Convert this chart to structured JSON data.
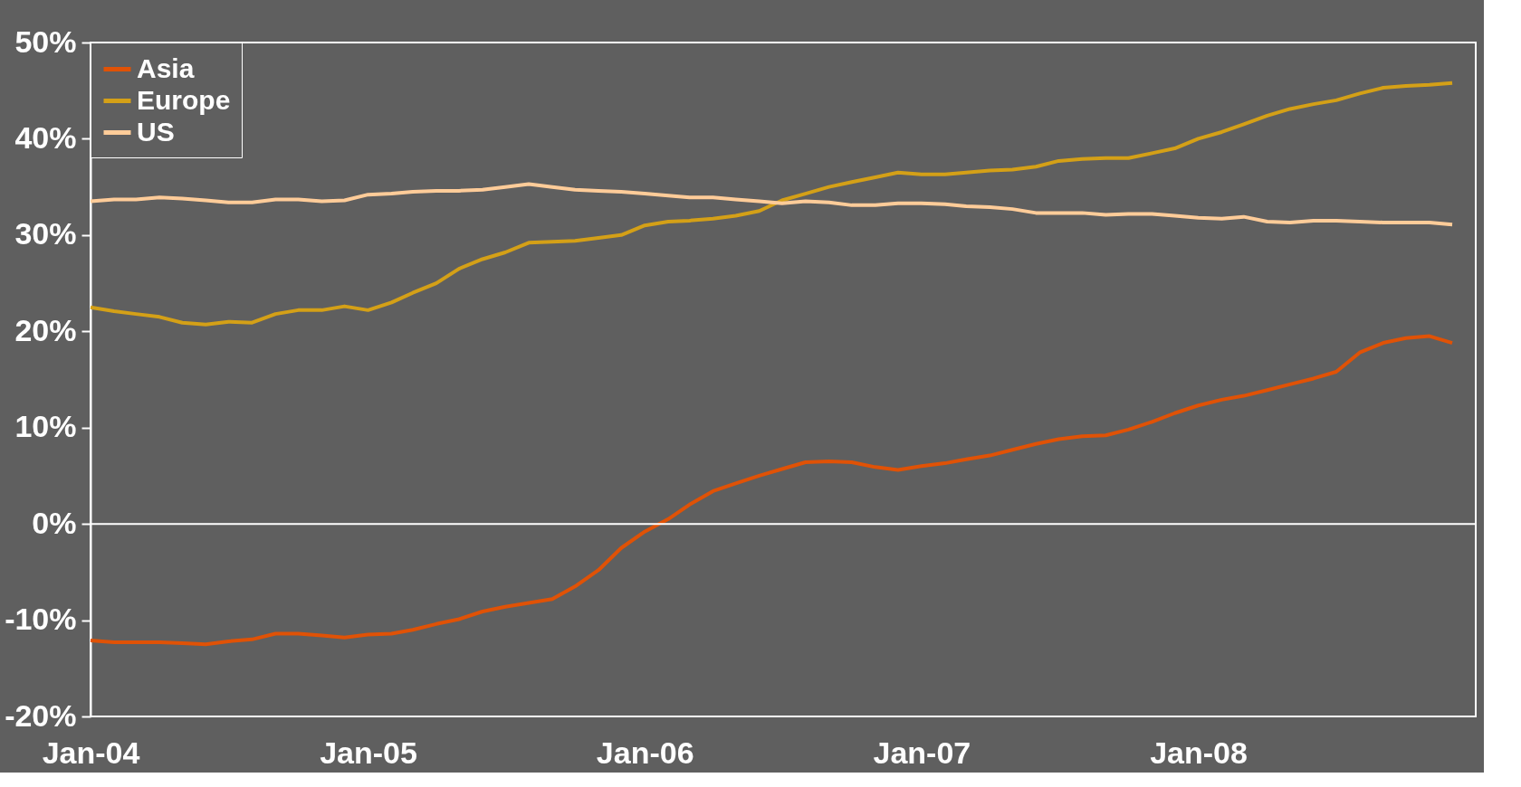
{
  "chart_data": {
    "type": "line",
    "x": [
      "2004-01",
      "2004-02",
      "2004-03",
      "2004-04",
      "2004-05",
      "2004-06",
      "2004-07",
      "2004-08",
      "2004-09",
      "2004-10",
      "2004-11",
      "2004-12",
      "2005-01",
      "2005-02",
      "2005-03",
      "2005-04",
      "2005-05",
      "2005-06",
      "2005-07",
      "2005-08",
      "2005-09",
      "2005-10",
      "2005-11",
      "2005-12",
      "2006-01",
      "2006-02",
      "2006-03",
      "2006-04",
      "2006-05",
      "2006-06",
      "2006-07",
      "2006-08",
      "2006-09",
      "2006-10",
      "2006-11",
      "2006-12",
      "2007-01",
      "2007-02",
      "2007-03",
      "2007-04",
      "2007-05",
      "2007-06",
      "2007-07",
      "2007-08",
      "2007-09",
      "2007-10",
      "2007-11",
      "2007-12",
      "2008-01",
      "2008-02",
      "2008-03",
      "2008-04",
      "2008-05",
      "2008-06",
      "2008-07",
      "2008-08",
      "2008-09",
      "2008-10",
      "2008-11",
      "2008-12"
    ],
    "series": [
      {
        "name": "Asia",
        "color": "#e05206",
        "values": [
          -12.1,
          -12.3,
          -12.3,
          -12.3,
          -12.4,
          -12.5,
          -12.2,
          -12.0,
          -11.4,
          -11.4,
          -11.6,
          -11.8,
          -11.5,
          -11.4,
          -11.0,
          -10.4,
          -9.9,
          -9.1,
          -8.6,
          -8.2,
          -7.8,
          -6.5,
          -4.8,
          -2.5,
          -0.8,
          0.5,
          2.0,
          3.4,
          4.2,
          5.0,
          5.7,
          6.4,
          6.5,
          6.4,
          5.9,
          5.6,
          6.0,
          6.3,
          6.7,
          7.1,
          7.7,
          8.3,
          8.8,
          9.1,
          9.2,
          9.8,
          10.6,
          11.5,
          12.3,
          12.9,
          13.3,
          13.9,
          14.5,
          15.1,
          15.8,
          17.8,
          18.8,
          19.3,
          19.5,
          18.8
        ]
      },
      {
        "name": "Europe",
        "color": "#d4a017",
        "values": [
          22.5,
          22.1,
          21.8,
          21.5,
          20.9,
          20.7,
          21.0,
          20.9,
          21.8,
          22.2,
          22.2,
          22.6,
          22.2,
          23.0,
          24.0,
          25.0,
          26.5,
          27.5,
          28.2,
          29.2,
          29.3,
          29.4,
          29.7,
          30.0,
          31.0,
          31.4,
          31.5,
          31.7,
          32.0,
          32.5,
          33.6,
          34.3,
          35.0,
          35.5,
          36.0,
          36.5,
          36.3,
          36.3,
          36.5,
          36.7,
          36.8,
          37.1,
          37.7,
          37.9,
          38.0,
          38.0,
          38.5,
          39.0,
          40.0,
          40.7,
          41.5,
          42.4,
          43.1,
          43.6,
          44.0,
          44.7,
          45.3,
          45.5,
          45.6,
          45.8
        ]
      },
      {
        "name": "US",
        "color": "#ffcc99",
        "values": [
          33.5,
          33.7,
          33.7,
          33.9,
          33.8,
          33.6,
          33.4,
          33.4,
          33.7,
          33.7,
          33.5,
          33.6,
          34.2,
          34.3,
          34.5,
          34.6,
          34.6,
          34.7,
          35.0,
          35.3,
          35.0,
          34.7,
          34.6,
          34.5,
          34.3,
          34.1,
          33.9,
          33.9,
          33.7,
          33.5,
          33.3,
          33.5,
          33.4,
          33.1,
          33.1,
          33.3,
          33.3,
          33.2,
          33.0,
          32.9,
          32.7,
          32.3,
          32.3,
          32.3,
          32.1,
          32.2,
          32.2,
          32.0,
          31.8,
          31.7,
          31.9,
          31.4,
          31.3,
          31.5,
          31.5,
          31.4,
          31.3,
          31.3,
          31.3,
          31.1
        ]
      }
    ],
    "xlim": [
      "2004-01",
      "2009-01"
    ],
    "xticks": [
      {
        "value": "2004-01",
        "label": "Jan-04"
      },
      {
        "value": "2005-01",
        "label": "Jan-05"
      },
      {
        "value": "2006-01",
        "label": "Jan-06"
      },
      {
        "value": "2007-01",
        "label": "Jan-07"
      },
      {
        "value": "2008-01",
        "label": "Jan-08"
      }
    ],
    "ylim": [
      -20,
      50
    ],
    "yticks": [
      {
        "value": -20,
        "label": "-20%"
      },
      {
        "value": -10,
        "label": "-10%"
      },
      {
        "value": 0,
        "label": "0%"
      },
      {
        "value": 10,
        "label": "10%"
      },
      {
        "value": 20,
        "label": "20%"
      },
      {
        "value": 30,
        "label": "30%"
      },
      {
        "value": 40,
        "label": "40%"
      },
      {
        "value": 50,
        "label": "50%"
      }
    ],
    "ref_lines": [
      {
        "axis": "y",
        "value": 0,
        "color": "#ffffff"
      }
    ],
    "legend": "top left",
    "grid": false,
    "marker": "none",
    "line_style": "solid"
  }
}
